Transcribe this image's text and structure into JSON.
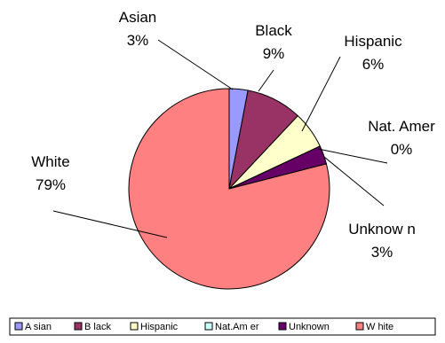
{
  "chart_data": {
    "type": "pie",
    "title": "",
    "slices": [
      {
        "name": "Asian",
        "value": 3,
        "label_name": "Asian",
        "label_pct": "3%",
        "color": "#9999ff"
      },
      {
        "name": "Black",
        "value": 9,
        "label_name": "Black",
        "label_pct": "9%",
        "color": "#993366"
      },
      {
        "name": "Hispanic",
        "value": 6,
        "label_name": "Hispanic",
        "label_pct": "6%",
        "color": "#ffffcc"
      },
      {
        "name": "Nat.Amer",
        "value": 0,
        "label_name": "Nat. Amer",
        "label_pct": "0%",
        "color": "#ccffff"
      },
      {
        "name": "Unknown",
        "value": 3,
        "label_name": "Unknow n",
        "label_pct": "3%",
        "color": "#660066"
      },
      {
        "name": "White",
        "value": 79,
        "label_name": "White",
        "label_pct": "79%",
        "color": "#ff8080"
      }
    ],
    "legend": {
      "placement": "bottom",
      "items": [
        "A sian",
        "B lack",
        "Hispanic",
        "Nat.Am er",
        "Unknown",
        "W hite"
      ]
    }
  }
}
